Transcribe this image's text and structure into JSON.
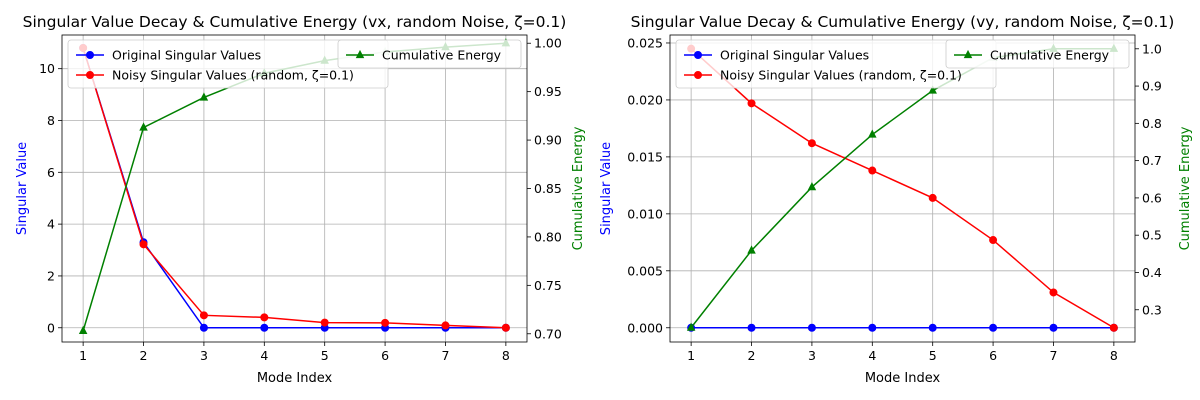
{
  "chart_data": [
    {
      "type": "line",
      "title": "Singular Value Decay & Cumulative Energy (vx, random Noise, ζ=0.1)",
      "xlabel": "Mode Index",
      "ylabel": "Singular Value",
      "ylabel_color": "#0000ff",
      "y2label": "Cumulative Energy",
      "y2label_color": "#008000",
      "x": [
        1,
        2,
        3,
        4,
        5,
        6,
        7,
        8
      ],
      "xlim": [
        0.65,
        8.35
      ],
      "xticks": [
        "1",
        "2",
        "3",
        "4",
        "5",
        "6",
        "7",
        "8"
      ],
      "ylim": [
        -0.55,
        11.3
      ],
      "yticks": [
        "0",
        "2",
        "4",
        "6",
        "8",
        "10"
      ],
      "y2lim": [
        0.6915,
        1.0085
      ],
      "y2ticks": [
        "0.70",
        "0.75",
        "0.80",
        "0.85",
        "0.90",
        "0.95",
        "1.00"
      ],
      "grid": true,
      "legend_left_position": "upper left",
      "legend_right_position": "upper right",
      "series": [
        {
          "name": "Original Singular Values",
          "axis": "left",
          "color": "#0000ff",
          "marker": "circle",
          "values": [
            10.8,
            3.3,
            0.0,
            0.0,
            0.0,
            0.0,
            0.0,
            0.0
          ]
        },
        {
          "name": "Noisy Singular Values (random, ζ=0.1)",
          "axis": "left",
          "color": "#ff0000",
          "marker": "circle",
          "values": [
            10.8,
            3.22,
            0.48,
            0.4,
            0.2,
            0.19,
            0.09,
            0.0
          ]
        },
        {
          "name": "Cumulative Energy",
          "axis": "right",
          "color": "#008000",
          "marker": "triangle",
          "values": [
            0.703,
            0.913,
            0.944,
            0.969,
            0.982,
            0.991,
            0.996,
            1.0
          ]
        }
      ]
    },
    {
      "type": "line",
      "title": "Singular Value Decay & Cumulative Energy (vy, random Noise, ζ=0.1)",
      "xlabel": "Mode Index",
      "ylabel": "Singular Value",
      "ylabel_color": "#0000ff",
      "y2label": "Cumulative Energy",
      "y2label_color": "#008000",
      "x": [
        1,
        2,
        3,
        4,
        5,
        6,
        7,
        8
      ],
      "xlim": [
        0.65,
        8.35
      ],
      "xticks": [
        "1",
        "2",
        "3",
        "4",
        "5",
        "6",
        "7",
        "8"
      ],
      "ylim": [
        -0.00125,
        0.0257
      ],
      "yticks": [
        "0.000",
        "0.005",
        "0.010",
        "0.015",
        "0.020",
        "0.025"
      ],
      "y2lim": [
        0.2135,
        1.037
      ],
      "y2ticks": [
        "0.3",
        "0.4",
        "0.5",
        "0.6",
        "0.7",
        "0.8",
        "0.9",
        "1.0"
      ],
      "grid": true,
      "legend_left_position": "upper left",
      "legend_right_position": "upper right",
      "series": [
        {
          "name": "Original Singular Values",
          "axis": "left",
          "color": "#0000ff",
          "marker": "circle",
          "values": [
            0.0,
            0.0,
            0.0,
            0.0,
            0.0,
            0.0,
            0.0,
            0.0
          ]
        },
        {
          "name": "Noisy Singular Values (random, ζ=0.1)",
          "axis": "left",
          "color": "#ff0000",
          "marker": "circle",
          "values": [
            0.0245,
            0.0197,
            0.0162,
            0.0138,
            0.0114,
            0.0077,
            0.0031,
            0.0
          ]
        },
        {
          "name": "Cumulative Energy",
          "axis": "right",
          "color": "#008000",
          "marker": "triangle",
          "values": [
            0.252,
            0.459,
            0.629,
            0.77,
            0.888,
            0.976,
            1.0,
            1.0
          ]
        }
      ]
    }
  ]
}
